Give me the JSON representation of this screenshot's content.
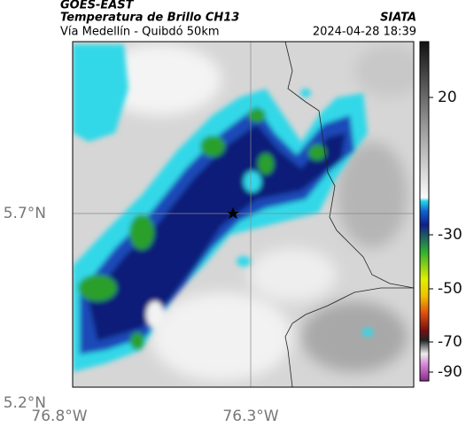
{
  "header": {
    "title": "GOES-EAST",
    "subtitle": "Temperatura de Brillo CH13",
    "source": "SIATA",
    "region": "Vía Medellín - Quibdó 50km",
    "timestamp": "2024-04-28 18:39"
  },
  "axes": {
    "latitude_labels": [
      "5.7°N",
      "5.2°N"
    ],
    "longitude_labels": [
      "76.8°W",
      "76.3°W"
    ]
  },
  "colorbar": {
    "ticks": [
      20,
      -30,
      -50,
      -70,
      -90
    ]
  }
}
